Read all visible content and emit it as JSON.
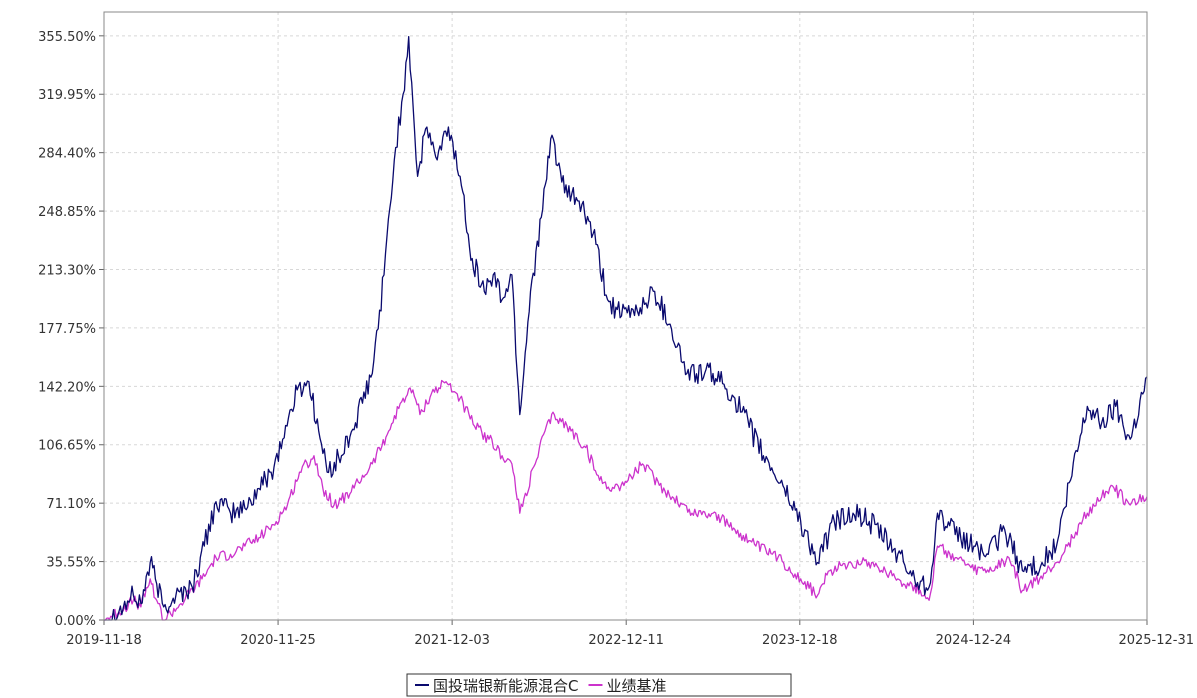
{
  "chart_data": {
    "type": "line",
    "title": "",
    "xlabel": "",
    "ylabel": "",
    "x_ticks": [
      "2019-11-18",
      "2020-11-25",
      "2021-12-03",
      "2022-12-11",
      "2023-12-18",
      "2024-12-24",
      "2025-12-31"
    ],
    "y_ticks": [
      "0.00%",
      "35.55%",
      "71.10%",
      "106.65%",
      "142.20%",
      "177.75%",
      "213.30%",
      "248.85%",
      "284.40%",
      "319.95%",
      "355.50%"
    ],
    "xlim": [
      "2019-11-18",
      "2025-12-31"
    ],
    "ylim": [
      0,
      370
    ],
    "y_unit": "%",
    "grid": true,
    "legend_position": "bottom-center",
    "series": [
      {
        "name": "国投瑞银新能源混合C",
        "color": "#0a0a6e",
        "points": [
          [
            "2019-11-18",
            0
          ],
          [
            "2019-12-20",
            5
          ],
          [
            "2020-01-20",
            15
          ],
          [
            "2020-02-05",
            10
          ],
          [
            "2020-02-25",
            35
          ],
          [
            "2020-03-10",
            22
          ],
          [
            "2020-03-25",
            8
          ],
          [
            "2020-04-20",
            15
          ],
          [
            "2020-05-25",
            20
          ],
          [
            "2020-06-20",
            45
          ],
          [
            "2020-07-15",
            72
          ],
          [
            "2020-08-15",
            65
          ],
          [
            "2020-09-15",
            68
          ],
          [
            "2020-10-15",
            80
          ],
          [
            "2020-11-10",
            90
          ],
          [
            "2020-12-05",
            110
          ],
          [
            "2021-01-05",
            140
          ],
          [
            "2021-01-30",
            145
          ],
          [
            "2021-02-20",
            115
          ],
          [
            "2021-03-10",
            90
          ],
          [
            "2021-04-10",
            100
          ],
          [
            "2021-05-10",
            120
          ],
          [
            "2021-06-15",
            150
          ],
          [
            "2021-07-10",
            210
          ],
          [
            "2021-08-01",
            280
          ],
          [
            "2021-08-20",
            320
          ],
          [
            "2021-09-01",
            355
          ],
          [
            "2021-09-20",
            270
          ],
          [
            "2021-10-10",
            300
          ],
          [
            "2021-11-01",
            280
          ],
          [
            "2021-11-25",
            300
          ],
          [
            "2021-12-20",
            270
          ],
          [
            "2022-01-15",
            220
          ],
          [
            "2022-02-10",
            200
          ],
          [
            "2022-03-01",
            210
          ],
          [
            "2022-03-20",
            195
          ],
          [
            "2022-04-10",
            210
          ],
          [
            "2022-04-27",
            125
          ],
          [
            "2022-05-20",
            200
          ],
          [
            "2022-06-15",
            250
          ],
          [
            "2022-07-05",
            295
          ],
          [
            "2022-08-01",
            260
          ],
          [
            "2022-09-01",
            255
          ],
          [
            "2022-10-01",
            235
          ],
          [
            "2022-11-01",
            195
          ],
          [
            "2022-12-01",
            185
          ],
          [
            "2023-01-10",
            190
          ],
          [
            "2023-02-10",
            200
          ],
          [
            "2023-03-15",
            180
          ],
          [
            "2023-04-20",
            150
          ],
          [
            "2023-06-15",
            150
          ],
          [
            "2023-08-01",
            135
          ],
          [
            "2023-10-01",
            100
          ],
          [
            "2023-11-15",
            80
          ],
          [
            "2023-12-20",
            60
          ],
          [
            "2024-01-25",
            35
          ],
          [
            "2024-03-01",
            60
          ],
          [
            "2024-04-10",
            65
          ],
          [
            "2024-05-15",
            60
          ],
          [
            "2024-07-15",
            40
          ],
          [
            "2024-08-20",
            25
          ],
          [
            "2024-09-20",
            20
          ],
          [
            "2024-10-08",
            65
          ],
          [
            "2024-11-15",
            52
          ],
          [
            "2024-12-25",
            45
          ],
          [
            "2025-01-25",
            40
          ],
          [
            "2025-03-01",
            55
          ],
          [
            "2025-04-08",
            30
          ],
          [
            "2025-05-20",
            35
          ],
          [
            "2025-06-20",
            45
          ],
          [
            "2025-07-20",
            85
          ],
          [
            "2025-08-25",
            130
          ],
          [
            "2025-09-25",
            120
          ],
          [
            "2025-10-25",
            130
          ],
          [
            "2025-11-25",
            110
          ],
          [
            "2025-12-31",
            148
          ]
        ]
      },
      {
        "name": "业绩基准",
        "color": "#cc33cc",
        "points": [
          [
            "2019-11-18",
            0
          ],
          [
            "2019-12-20",
            5
          ],
          [
            "2020-01-20",
            12
          ],
          [
            "2020-02-05",
            8
          ],
          [
            "2020-02-25",
            25
          ],
          [
            "2020-03-10",
            12
          ],
          [
            "2020-03-25",
            0
          ],
          [
            "2020-05-01",
            10
          ],
          [
            "2020-06-15",
            25
          ],
          [
            "2020-07-15",
            38
          ],
          [
            "2020-08-15",
            40
          ],
          [
            "2020-09-15",
            45
          ],
          [
            "2020-10-15",
            50
          ],
          [
            "2020-11-15",
            58
          ],
          [
            "2020-12-15",
            70
          ],
          [
            "2021-01-10",
            90
          ],
          [
            "2021-02-10",
            100
          ],
          [
            "2021-03-01",
            80
          ],
          [
            "2021-03-25",
            70
          ],
          [
            "2021-05-01",
            78
          ],
          [
            "2021-06-15",
            95
          ],
          [
            "2021-07-20",
            115
          ],
          [
            "2021-08-20",
            135
          ],
          [
            "2021-09-10",
            140
          ],
          [
            "2021-09-25",
            125
          ],
          [
            "2021-10-20",
            138
          ],
          [
            "2021-11-20",
            145
          ],
          [
            "2021-12-20",
            135
          ],
          [
            "2022-01-20",
            118
          ],
          [
            "2022-02-20",
            110
          ],
          [
            "2022-03-20",
            100
          ],
          [
            "2022-04-10",
            95
          ],
          [
            "2022-04-27",
            65
          ],
          [
            "2022-05-30",
            95
          ],
          [
            "2022-06-20",
            115
          ],
          [
            "2022-07-10",
            125
          ],
          [
            "2022-08-15",
            115
          ],
          [
            "2022-09-15",
            105
          ],
          [
            "2022-10-15",
            85
          ],
          [
            "2022-11-15",
            80
          ],
          [
            "2022-12-15",
            85
          ],
          [
            "2023-01-15",
            95
          ],
          [
            "2023-02-20",
            82
          ],
          [
            "2023-03-20",
            75
          ],
          [
            "2023-05-01",
            65
          ],
          [
            "2023-06-15",
            65
          ],
          [
            "2023-08-01",
            55
          ],
          [
            "2023-09-15",
            45
          ],
          [
            "2023-11-01",
            38
          ],
          [
            "2023-12-20",
            25
          ],
          [
            "2024-01-25",
            15
          ],
          [
            "2024-02-20",
            30
          ],
          [
            "2024-04-01",
            35
          ],
          [
            "2024-05-20",
            35
          ],
          [
            "2024-07-15",
            25
          ],
          [
            "2024-09-01",
            18
          ],
          [
            "2024-09-20",
            12
          ],
          [
            "2024-10-08",
            45
          ],
          [
            "2024-11-15",
            38
          ],
          [
            "2024-12-25",
            30
          ],
          [
            "2025-02-01",
            30
          ],
          [
            "2025-03-10",
            38
          ],
          [
            "2025-04-08",
            18
          ],
          [
            "2025-05-15",
            25
          ],
          [
            "2025-06-20",
            35
          ],
          [
            "2025-07-25",
            50
          ],
          [
            "2025-08-25",
            65
          ],
          [
            "2025-09-25",
            75
          ],
          [
            "2025-10-15",
            82
          ],
          [
            "2025-11-25",
            70
          ],
          [
            "2025-12-31",
            75
          ]
        ]
      }
    ]
  }
}
